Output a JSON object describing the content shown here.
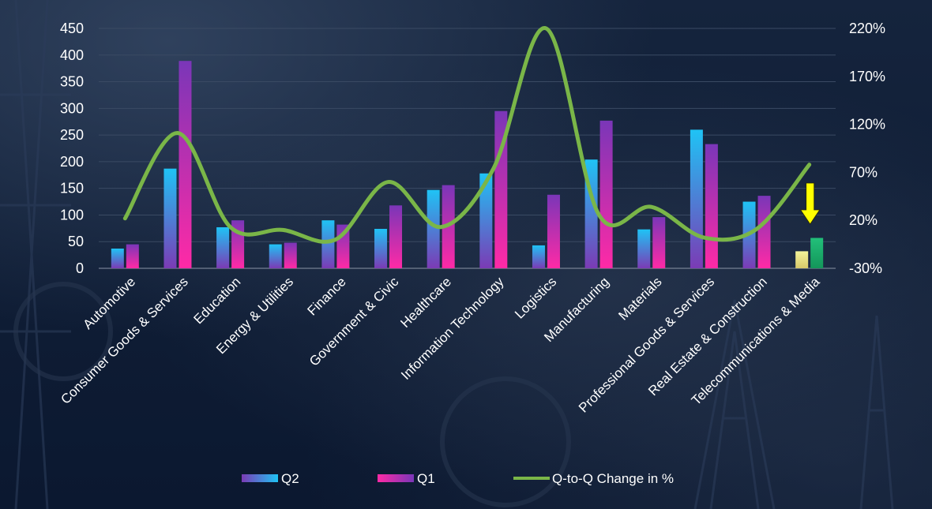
{
  "chart_data": {
    "type": "bar",
    "categories": [
      "Automotive",
      "Consumer Goods & Services",
      "Education",
      "Energy & Utilities",
      "Finance",
      "Government & Civic",
      "Healthcare",
      "Information Technology",
      "Logistics",
      "Manufacturing",
      "Materials",
      "Professional Goods & Services",
      "Real Estate & Construction",
      "Telecommunications & Media"
    ],
    "series": [
      {
        "name": "Q2",
        "type": "bar",
        "axis": "left",
        "values": [
          37,
          187,
          77,
          45,
          90,
          74,
          147,
          178,
          43,
          204,
          73,
          260,
          125,
          32
        ],
        "colors": [
          "#1fc3f5",
          "#7b3bb5"
        ]
      },
      {
        "name": "Q1",
        "type": "bar",
        "axis": "left",
        "values": [
          45,
          389,
          90,
          48,
          82,
          118,
          156,
          295,
          138,
          277,
          96,
          233,
          136,
          57
        ],
        "colors": [
          "#ff2aa6",
          "#6a2fb0"
        ]
      },
      {
        "name": "Q-to-Q Change in %",
        "type": "line",
        "axis": "right",
        "values": [
          22,
          111,
          13,
          10,
          0,
          60,
          13,
          74,
          220,
          26,
          34,
          2,
          11,
          78
        ],
        "color": "#7ab648"
      }
    ],
    "y_left": {
      "min": 0,
      "max": 450,
      "ticks": [
        0,
        50,
        100,
        150,
        200,
        250,
        300,
        350,
        400,
        450
      ]
    },
    "y_right": {
      "min": -30,
      "max": 220,
      "ticks": [
        "-30%",
        "20%",
        "70%",
        "120%",
        "170%",
        "220%"
      ]
    },
    "grid": true,
    "legend_position": "bottom",
    "annotations": [
      {
        "type": "arrow",
        "direction": "down",
        "category": "Telecommunications & Media",
        "color": "#ffff00"
      }
    ],
    "highlight": {
      "category": "Telecommunications & Media",
      "q2_color": "#f4f39a",
      "q1_color": "#1fad6a"
    },
    "title": "",
    "xlabel": "",
    "ylabel": ""
  },
  "legend": {
    "q2": "Q2",
    "q1": "Q1",
    "change": "Q-to-Q Change in %"
  }
}
